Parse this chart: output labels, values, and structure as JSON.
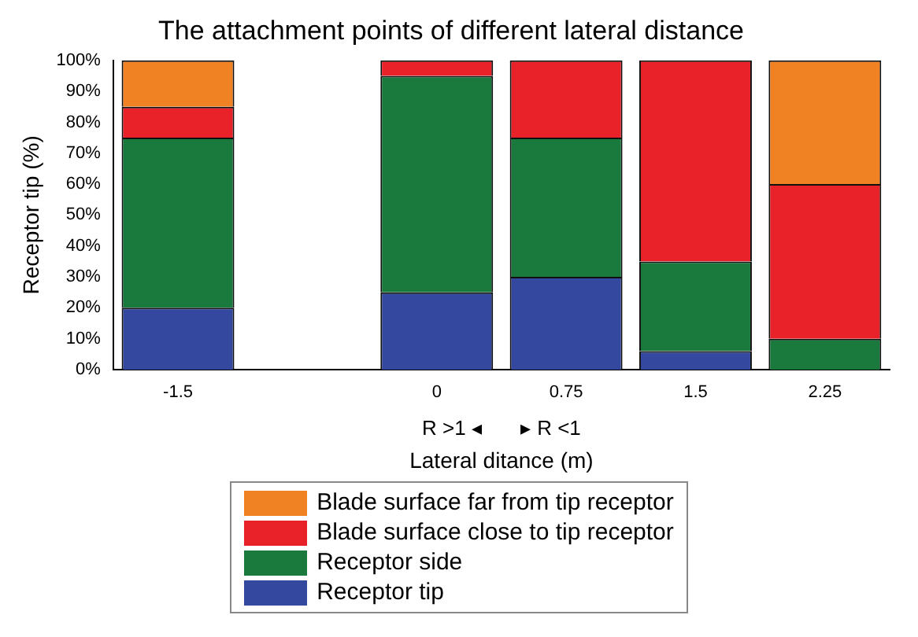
{
  "chart_data": {
    "type": "bar",
    "title": "The attachment points of different lateral distance",
    "xlabel": "Lateral ditance (m)",
    "ylabel": "Receptor tip (%)",
    "categories": [
      "-1.5",
      null,
      "0",
      "0.75",
      "1.5",
      "2.25"
    ],
    "stacked": true,
    "series": [
      {
        "name": "Receptor tip",
        "color": "#3448a0",
        "values": [
          20,
          null,
          25,
          30,
          6,
          0
        ]
      },
      {
        "name": "Receptor side",
        "color": "#1a7a3e",
        "values": [
          55,
          null,
          70,
          45,
          29,
          10
        ]
      },
      {
        "name": "Blade surface close to tip receptor",
        "color": "#e82228",
        "values": [
          10,
          null,
          5,
          25,
          65,
          50
        ]
      },
      {
        "name": "Blade surface far from tip receptor",
        "color": "#f08224",
        "values": [
          15,
          null,
          0,
          0,
          0,
          40
        ]
      }
    ],
    "ylim": [
      0,
      100
    ],
    "yticks": [
      {
        "value": 0,
        "label": "0%"
      },
      {
        "value": 10,
        "label": "10%"
      },
      {
        "value": 20,
        "label": "20%"
      },
      {
        "value": 30,
        "label": "30%"
      },
      {
        "value": 40,
        "label": "40%"
      },
      {
        "value": 50,
        "label": "50%"
      },
      {
        "value": 60,
        "label": "60%"
      },
      {
        "value": 70,
        "label": "70%"
      },
      {
        "value": 80,
        "label": "80%"
      },
      {
        "value": 90,
        "label": "90%"
      },
      {
        "value": 100,
        "label": "100%"
      }
    ],
    "annotations": [
      "R >1 ◂",
      "▸ R <1"
    ],
    "grid": false,
    "legend": "bottom"
  }
}
